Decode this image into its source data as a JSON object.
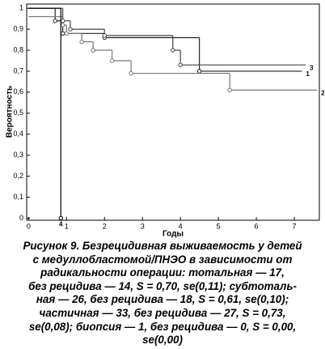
{
  "chart_data": {
    "type": "step",
    "y_label": "Вероятность",
    "x_label": "Годы",
    "xlim": [
      -0.05,
      7.66
    ],
    "ylim": [
      -0.01,
      1.02
    ],
    "xticks": [
      0,
      1,
      2,
      3,
      4,
      5,
      6,
      7
    ],
    "yticks": [
      0,
      {
        "value": 0.1,
        "label": "0,1"
      },
      {
        "value": 0.2,
        "label": "0,2"
      },
      {
        "value": 0.3,
        "label": "0,3"
      },
      {
        "value": 0.4,
        "label": "0,4"
      },
      {
        "value": 0.5,
        "label": "0,5"
      },
      {
        "value": 0.6,
        "label": "0,6"
      },
      {
        "value": 0.7,
        "label": "0,7"
      },
      {
        "value": 0.8,
        "label": "0,8"
      },
      {
        "value": 0.9,
        "label": "0,9"
      },
      1
    ],
    "series": [
      {
        "name": "1",
        "color": "#222222",
        "x": [
          0,
          0.7,
          0.9,
          2,
          4.5,
          7.2
        ],
        "values": [
          1,
          0.94,
          0.88,
          0.86,
          0.7,
          0.7
        ]
      },
      {
        "name": "2",
        "color": "#777777",
        "x": [
          0,
          0.9,
          1,
          1.4,
          1.7,
          2.2,
          2.7,
          5.3,
          7.6
        ],
        "values": [
          0.96,
          0.92,
          0.88,
          0.84,
          0.8,
          0.75,
          0.69,
          0.61,
          0.61
        ]
      },
      {
        "name": "3",
        "color": "#444444",
        "x": [
          0,
          0.9,
          1.1,
          2,
          3.8,
          4,
          7.3
        ],
        "values": [
          1,
          0.94,
          0.9,
          0.87,
          0.8,
          0.73,
          0.73
        ]
      },
      {
        "name": "4",
        "color": "#000000",
        "x": [
          0,
          0.85
        ],
        "values": [
          1,
          0
        ]
      }
    ]
  },
  "caption": [
    "Рисунок 9. Безрецидивная выживаемость у детей",
    "с медуллобластомой/ПНЭО в зависимости от",
    "радикальности операции: тотальная — 17,",
    "без рецидива — 14, S = 0,70, se(0,11); субтоталь-",
    "ная — 26, без рецидива — 18, S = 0,61, se(0,10);",
    "частичная — 33, без рецидива — 27, S = 0,73,",
    "se(0,08); биопсия — 1, без рецидива — 0, S = 0,00,",
    "se(0,00)"
  ]
}
